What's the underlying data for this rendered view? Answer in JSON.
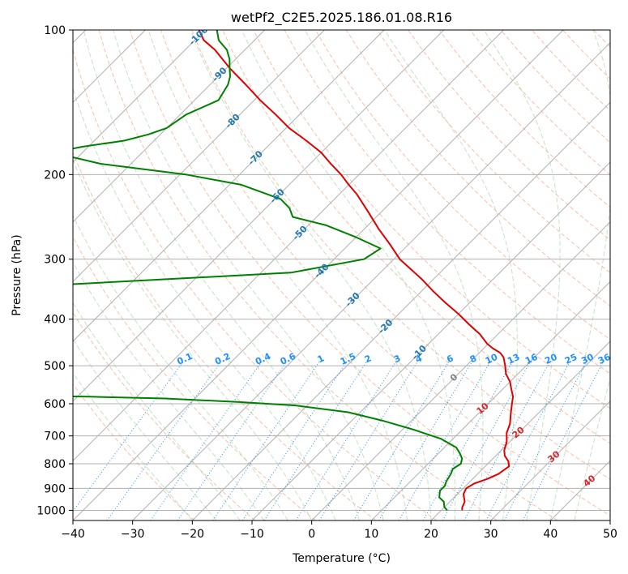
{
  "chart_data": {
    "type": "skew-t",
    "title": "wetPf2_C2E5.2025.186.01.08.R16",
    "xlabel": "Temperature (°C)",
    "ylabel": "Pressure (hPa)",
    "xlim": [
      -40,
      50
    ],
    "ylim": [
      1050,
      100
    ],
    "y_scale": "log",
    "grid": true,
    "x_ticks": [
      "−40",
      "−30",
      "−20",
      "−10",
      "0",
      "10",
      "20",
      "30",
      "40",
      "50"
    ],
    "x_tick_values": [
      -40,
      -30,
      -20,
      -10,
      0,
      10,
      20,
      30,
      40,
      50
    ],
    "y_ticks": [
      "100",
      "200",
      "300",
      "400",
      "500",
      "600",
      "700",
      "800",
      "900",
      "1000"
    ],
    "y_tick_values": [
      100,
      200,
      300,
      400,
      500,
      600,
      700,
      800,
      900,
      1000
    ],
    "colors": {
      "temperature": "#e00000",
      "dewpoint": "#008000",
      "isotherm_labels": "#1f77b4",
      "mixing_ratio_labels": "#1e90ff",
      "wetbulb_labels": "#d62728",
      "zero_label": "#808080"
    },
    "isotherm_labels": [
      {
        "text": "-100",
        "t": -100,
        "p": 103
      },
      {
        "text": "-90",
        "t": -90,
        "p": 124
      },
      {
        "text": "-80",
        "t": -80,
        "p": 155
      },
      {
        "text": "-70",
        "t": -70,
        "p": 185
      },
      {
        "text": "-60",
        "t": -60,
        "p": 222
      },
      {
        "text": "-50",
        "t": -50,
        "p": 265
      },
      {
        "text": "-40",
        "t": -40,
        "p": 318
      },
      {
        "text": "-30",
        "t": -30,
        "p": 365
      },
      {
        "text": "-20",
        "t": -20,
        "p": 415
      },
      {
        "text": "-10",
        "t": -10,
        "p": 470
      }
    ],
    "zero_isotherm_label": {
      "text": "0",
      "t": 0,
      "p": 530
    },
    "mixing_ratio_labels": [
      "0.1",
      "0.2",
      "0.4",
      "0.6",
      "1",
      "1.5",
      "2",
      "3",
      "4",
      "6",
      "8",
      "10",
      "13",
      "16",
      "20",
      "25",
      "30",
      "36"
    ],
    "mixing_ratio_values": [
      0.1,
      0.2,
      0.4,
      0.6,
      1,
      1.5,
      2,
      3,
      4,
      6,
      8,
      10,
      13,
      16,
      20,
      25,
      30,
      36
    ],
    "mixing_ratio_label_pressure": 485,
    "wetbulb_labels": [
      {
        "text": "10",
        "t": 10,
        "p": 615
      },
      {
        "text": "20",
        "t": 20,
        "p": 690
      },
      {
        "text": "30",
        "t": 30,
        "p": 775
      },
      {
        "text": "40",
        "t": 40,
        "p": 870
      }
    ],
    "series": [
      {
        "key": "temperature",
        "p": [
          1000,
          985,
          960,
          925,
          900,
          880,
          860,
          840,
          810,
          790,
          770,
          750,
          720,
          690,
          660,
          630,
          600,
          580,
          560,
          540,
          520,
          500,
          480,
          470,
          460,
          450,
          430,
          410,
          390,
          370,
          350,
          330,
          300,
          280,
          260,
          240,
          220,
          210,
          200,
          190,
          180,
          170,
          160,
          150,
          140,
          130,
          120,
          110,
          105,
          100
        ],
        "t": [
          23.5,
          23.0,
          22.5,
          21.0,
          20.5,
          21.0,
          22.5,
          23.5,
          24.0,
          23.0,
          21.5,
          20.5,
          19.5,
          18.0,
          17.0,
          15.5,
          14.0,
          13.0,
          11.5,
          10.0,
          8.0,
          6.5,
          4.8,
          3.5,
          1.5,
          -0.2,
          -3.0,
          -6.5,
          -10.0,
          -14.0,
          -18.0,
          -22.0,
          -29.0,
          -33.0,
          -37.5,
          -42.0,
          -47.0,
          -50.0,
          -53.0,
          -56.5,
          -60.0,
          -64.5,
          -69.5,
          -74.0,
          -79.0,
          -84.0,
          -89.5,
          -95.0,
          -98.5,
          -101.0
        ]
      },
      {
        "key": "dewpoint",
        "p": [
          1000,
          985,
          960,
          940,
          910,
          890,
          870,
          840,
          820,
          800,
          780,
          760,
          740,
          710,
          680,
          650,
          625,
          605,
          595,
          585,
          580,
          575,
          570,
          565,
          560,
          555,
          550,
          540,
          530,
          520,
          510,
          500,
          490,
          485,
          480,
          478,
          470,
          460,
          440,
          420,
          400,
          380,
          360,
          352,
          345,
          320,
          300,
          285,
          270,
          255,
          245,
          235,
          225,
          210,
          200,
          190,
          180,
          175,
          170,
          165,
          160,
          150,
          140,
          130,
          125,
          120,
          115,
          110,
          105,
          100
        ],
        "t": [
          21.0,
          20.0,
          19.0,
          17.5,
          16.5,
          16.5,
          16.0,
          15.5,
          15.0,
          15.5,
          14.8,
          13.5,
          12.0,
          8.0,
          2.0,
          -5.0,
          -12.0,
          -22.0,
          -32.0,
          -45.0,
          -58.0,
          -75.0,
          -90.0,
          -98.0,
          -91.0,
          -82.0,
          -79.0,
          -82.0,
          -89.0,
          -92.0,
          -88.0,
          -86.0,
          -87.0,
          -92.0,
          -101.0,
          -104.0,
          -105.0,
          -107.0,
          -108.5,
          -110.0,
          -110.5,
          -112.0,
          -112.0,
          -108.0,
          -92.0,
          -45.0,
          -35.0,
          -34.0,
          -40.0,
          -47.0,
          -54.0,
          -56.0,
          -59.0,
          -68.0,
          -79.0,
          -95.0,
          -105.0,
          -101.0,
          -95.0,
          -92.0,
          -90.0,
          -89.0,
          -86.0,
          -87.0,
          -88.0,
          -89.5,
          -91.0,
          -93.0,
          -96.0,
          -98.0
        ]
      }
    ]
  }
}
